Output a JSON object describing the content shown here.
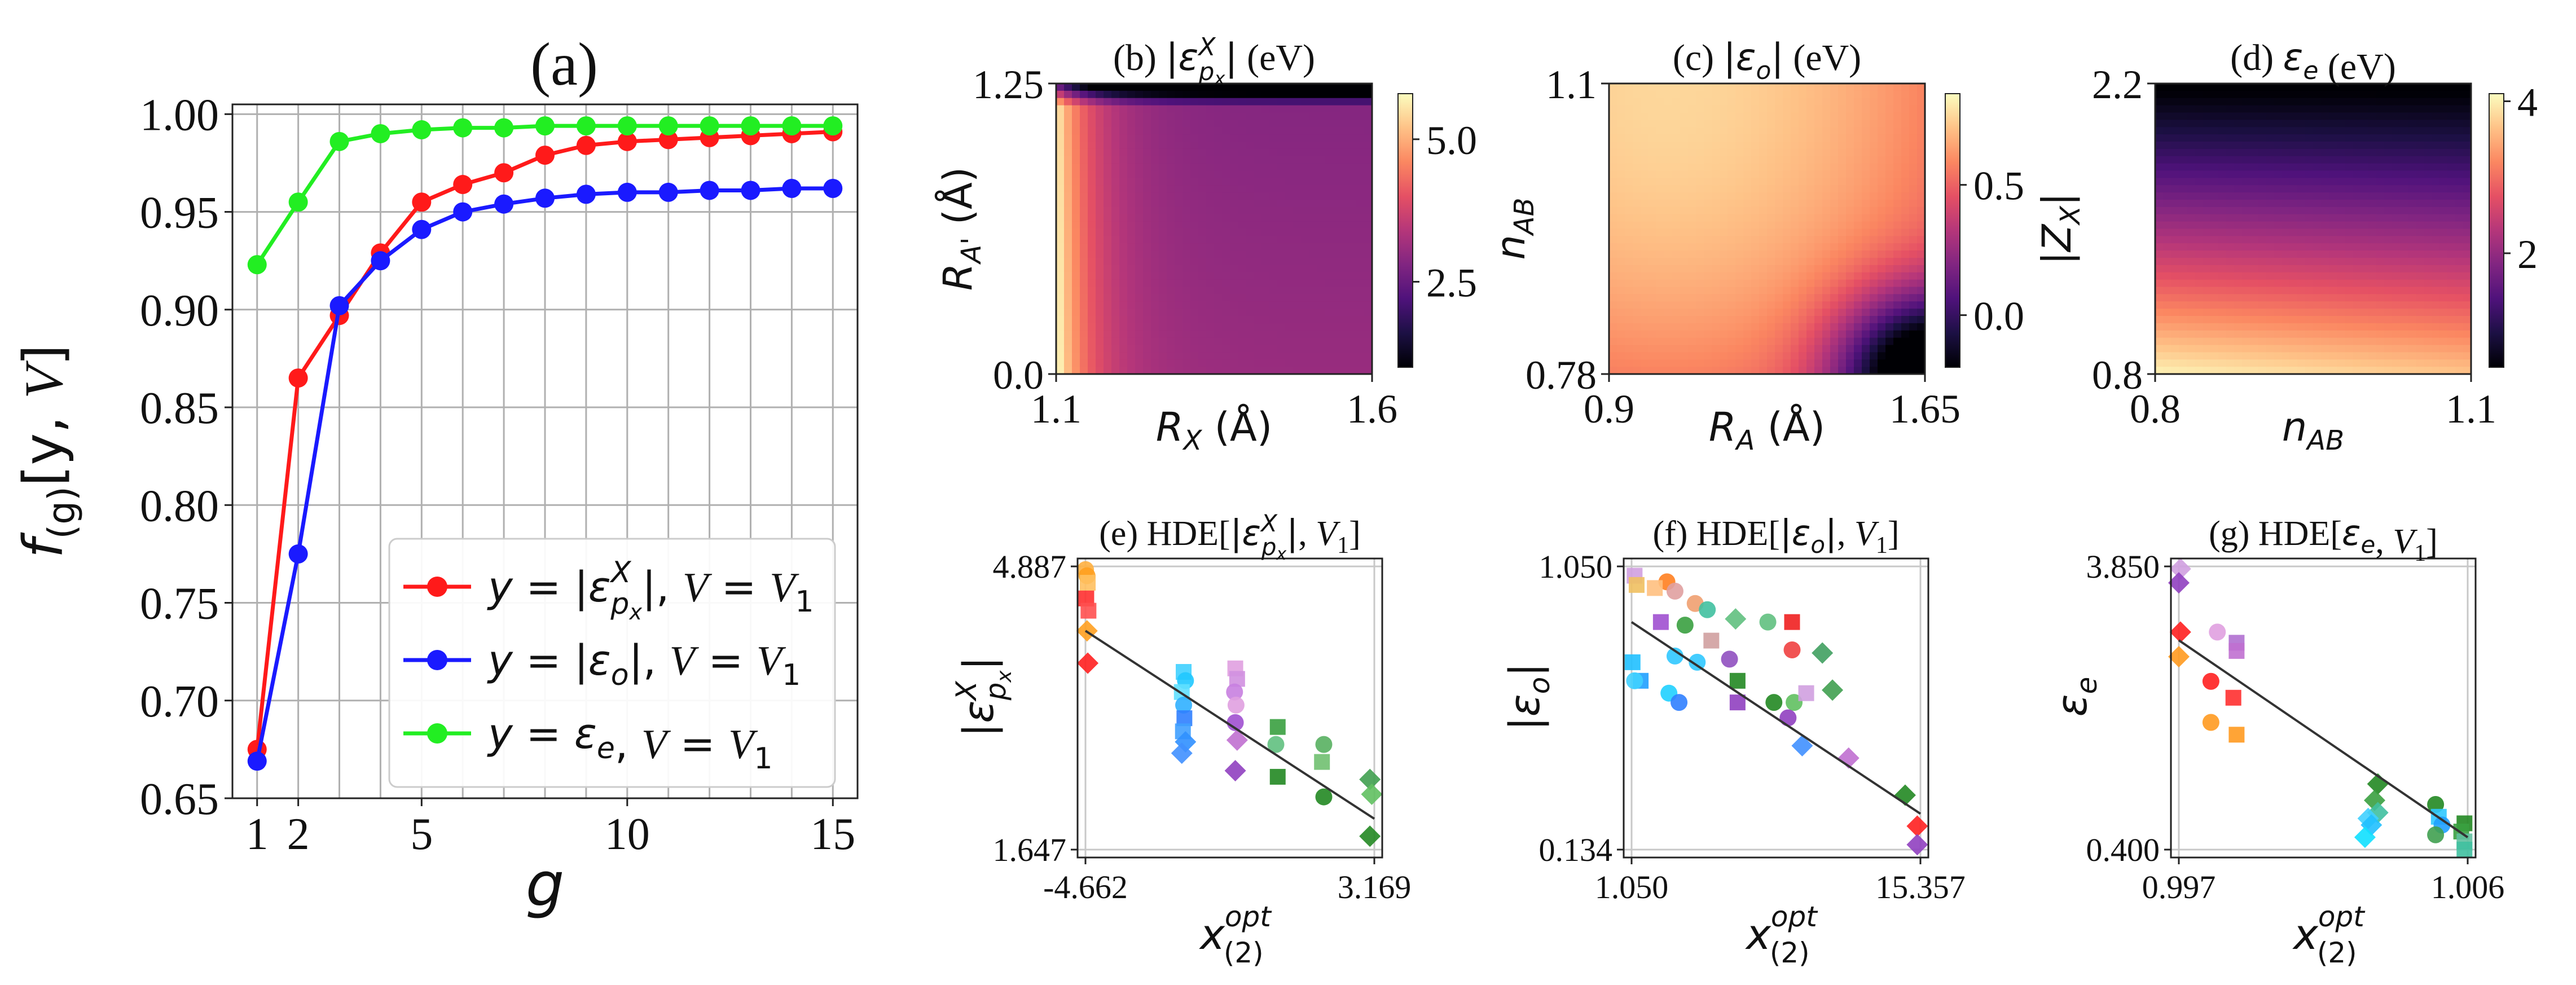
{
  "chart_data": [
    {
      "panel": "a",
      "type": "line",
      "title": "(a)",
      "xlabel": "g",
      "ylabel": "f_(g)[y, V]",
      "ylabel_main": "f",
      "ylabel_sub": "(g)",
      "ylabel_tail": "[y, ",
      "ylabel_V": "V",
      "ylabel_close": "]",
      "xlim": [
        0.4,
        15.6
      ],
      "ylim": [
        0.65,
        1.005
      ],
      "xticks": [
        1,
        2,
        5,
        10,
        15
      ],
      "yticks": [
        0.65,
        0.7,
        0.75,
        0.8,
        0.85,
        0.9,
        0.95,
        1.0
      ],
      "ytick_labels": [
        "0.65",
        "0.70",
        "0.75",
        "0.80",
        "0.85",
        "0.90",
        "0.95",
        "1.00"
      ],
      "grid": true,
      "legend_position": "lower-right",
      "x": [
        1,
        2,
        3,
        4,
        5,
        6,
        7,
        8,
        9,
        10,
        11,
        12,
        13,
        14,
        15
      ],
      "series": [
        {
          "name": "y = |ε^X_px|, V = V1",
          "legend_sym": "ε",
          "legend_sup": "X",
          "legend_sub": "p",
          "legend_subsub": "x",
          "legend_abs": true,
          "legend_V": "V",
          "legend_Vsub": "1",
          "color": "#ff1a1a",
          "values": [
            0.675,
            0.865,
            0.897,
            0.929,
            0.955,
            0.964,
            0.97,
            0.979,
            0.984,
            0.986,
            0.987,
            0.988,
            0.989,
            0.99,
            0.991
          ]
        },
        {
          "name": "y = |ε_o|, V = V1",
          "legend_sym": "ε",
          "legend_sup": "",
          "legend_sub": "o",
          "legend_subsub": "",
          "legend_abs": true,
          "legend_V": "V",
          "legend_Vsub": "1",
          "color": "#1a1aff",
          "values": [
            0.669,
            0.775,
            0.902,
            0.925,
            0.941,
            0.95,
            0.954,
            0.957,
            0.959,
            0.96,
            0.96,
            0.961,
            0.961,
            0.962,
            0.962
          ]
        },
        {
          "name": "y = ε_e, V = V1",
          "legend_sym": "ε",
          "legend_sup": "",
          "legend_sub": "e",
          "legend_subsub": "",
          "legend_abs": false,
          "legend_V": "V",
          "legend_Vsub": "1",
          "color": "#22ee22",
          "values": [
            0.923,
            0.955,
            0.986,
            0.99,
            0.992,
            0.993,
            0.993,
            0.994,
            0.994,
            0.994,
            0.994,
            0.994,
            0.994,
            0.994,
            0.994
          ]
        }
      ]
    },
    {
      "panel": "b",
      "type": "heatmap",
      "title_prefix": "(b)",
      "title_sym": "|ε",
      "title_sup": "X",
      "title_sub": "p",
      "title_subsub": "x",
      "title_close": "|",
      "title_unit": "(eV)",
      "xlabel": "R_X (Å)",
      "xlabel_sym": "R",
      "xlabel_sub": "X",
      "xlabel_unit": " (Å)",
      "ylabel": "R_A' (Å)",
      "ylabel_sym": "R",
      "ylabel_sub": "A'",
      "ylabel_unit": " (Å)",
      "xticks": [
        "1.1",
        "1.6"
      ],
      "yticks": [
        "0.0",
        "1.25"
      ],
      "colorbar_ticks": [
        {
          "value": 2.5,
          "label": "2.5"
        },
        {
          "value": 5.0,
          "label": "5.0"
        }
      ],
      "colorbar_range": [
        1.0,
        5.8
      ],
      "colormap": "magma"
    },
    {
      "panel": "c",
      "type": "heatmap",
      "title_prefix": "(c)",
      "title_sym": "|ε",
      "title_sup": "",
      "title_sub": "o",
      "title_subsub": "",
      "title_close": "|",
      "title_unit": "(eV)",
      "xlabel": "R_A (Å)",
      "xlabel_sym": "R",
      "xlabel_sub": "A",
      "xlabel_unit": " (Å)",
      "ylabel": "n_AB",
      "ylabel_sym": "n",
      "ylabel_sub": "AB",
      "ylabel_unit": "",
      "xticks": [
        "0.9",
        "1.65"
      ],
      "yticks": [
        "0.78",
        "1.1"
      ],
      "colorbar_ticks": [
        {
          "value": 0.0,
          "label": "0.0"
        },
        {
          "value": 0.5,
          "label": "0.5"
        }
      ],
      "colorbar_range": [
        -0.2,
        0.85
      ],
      "colormap": "magma"
    },
    {
      "panel": "d",
      "type": "heatmap",
      "title_prefix": "(d)",
      "title_sym": "ε",
      "title_sup": "",
      "title_sub": "e",
      "title_subsub": "",
      "title_close": "",
      "title_unit": "(eV)",
      "xlabel": "n_AB",
      "xlabel_sym": "n",
      "xlabel_sub": "AB",
      "xlabel_unit": "",
      "ylabel": "|Z_X|",
      "ylabel_sym": "|Z",
      "ylabel_sub": "X",
      "ylabel_unit": "|",
      "xticks": [
        "0.8",
        "1.1"
      ],
      "yticks": [
        "0.8",
        "2.2"
      ],
      "colorbar_ticks": [
        {
          "value": 2,
          "label": "2"
        },
        {
          "value": 4,
          "label": "4"
        }
      ],
      "colorbar_range": [
        0.5,
        4.1
      ],
      "colormap": "magma"
    },
    {
      "panel": "e",
      "type": "scatter",
      "title_prefix": "(e)",
      "title_pre": "HDE[",
      "title_sym": "|ε",
      "title_sup": "X",
      "title_sub": "p",
      "title_subsub": "x",
      "title_close": "|",
      "title_V": "V",
      "title_Vsub": "1",
      "xlabel": "x_(2)^opt",
      "ylabel": "|ε^X_px|",
      "ylabel_sym": "|ε",
      "ylabel_sup": "X",
      "ylabel_sub": "p",
      "ylabel_subsub": "x",
      "ylabel_close": "|",
      "xlim": [
        -4.662,
        3.169
      ],
      "ylim": [
        1.647,
        4.887
      ],
      "xtick_labels": [
        "-4.662",
        "3.169"
      ],
      "ytick_labels": [
        "4.887",
        "1.647"
      ],
      "fit_line": [
        [
          -4.662,
          4.15
        ],
        [
          3.169,
          2.0
        ]
      ],
      "points": [
        [
          -4.66,
          4.85,
          "#ffb040",
          "circle"
        ],
        [
          -4.62,
          4.78,
          "#ffa020",
          "circle"
        ],
        [
          -4.6,
          4.7,
          "#ffc060",
          "square"
        ],
        [
          -4.64,
          4.52,
          "#ff3030",
          "square"
        ],
        [
          -4.58,
          4.38,
          "#ff5050",
          "square"
        ],
        [
          -4.62,
          4.15,
          "#ffa020",
          "diamond"
        ],
        [
          -4.6,
          3.78,
          "#ff2020",
          "diamond"
        ],
        [
          -2.0,
          3.68,
          "#40d0ff",
          "square"
        ],
        [
          -1.95,
          3.58,
          "#20c8ff",
          "circle"
        ],
        [
          -2.05,
          3.45,
          "#60e0ff",
          "square"
        ],
        [
          -2.0,
          3.3,
          "#30b0ff",
          "circle"
        ],
        [
          -1.98,
          3.15,
          "#3080ff",
          "square"
        ],
        [
          -2.02,
          3.0,
          "#40a0ff",
          "square"
        ],
        [
          -1.95,
          2.88,
          "#3090ff",
          "diamond"
        ],
        [
          -2.05,
          2.75,
          "#4090ff",
          "diamond"
        ],
        [
          -0.6,
          3.72,
          "#e0a0e0",
          "square"
        ],
        [
          -0.55,
          3.6,
          "#d090e0",
          "square"
        ],
        [
          -0.62,
          3.45,
          "#c880e0",
          "circle"
        ],
        [
          -0.58,
          3.3,
          "#e0a0e0",
          "circle"
        ],
        [
          -0.6,
          3.1,
          "#a050d0",
          "circle"
        ],
        [
          -0.55,
          2.9,
          "#c070d0",
          "diamond"
        ],
        [
          -0.6,
          2.55,
          "#9040c0",
          "diamond"
        ],
        [
          0.55,
          3.05,
          "#3aa040",
          "square"
        ],
        [
          0.5,
          2.85,
          "#60c080",
          "circle"
        ],
        [
          0.55,
          2.48,
          "#228822",
          "square"
        ],
        [
          1.8,
          2.85,
          "#58b060",
          "circle"
        ],
        [
          1.75,
          2.65,
          "#70c070",
          "square"
        ],
        [
          1.8,
          2.25,
          "#228822",
          "circle"
        ],
        [
          3.05,
          2.45,
          "#40a050",
          "diamond"
        ],
        [
          3.1,
          2.28,
          "#60c060",
          "diamond"
        ],
        [
          3.05,
          1.8,
          "#228822",
          "diamond"
        ]
      ]
    },
    {
      "panel": "f",
      "type": "scatter",
      "title_prefix": "(f)",
      "title_pre": "HDE[",
      "title_sym": "|ε",
      "title_sup": "",
      "title_sub": "o",
      "title_subsub": "",
      "title_close": "|",
      "title_V": "V",
      "title_Vsub": "1",
      "xlabel": "x_(2)^opt",
      "ylabel": "|ε_o|",
      "ylabel_sym": "|ε",
      "ylabel_sup": "",
      "ylabel_sub": "o",
      "ylabel_subsub": "",
      "ylabel_close": "|",
      "xlim": [
        1.05,
        15.357
      ],
      "ylim": [
        0.134,
        1.05
      ],
      "xtick_labels": [
        "1.050",
        "15.357"
      ],
      "ytick_labels": [
        "1.050",
        "0.134"
      ],
      "fit_line": [
        [
          1.05,
          0.87
        ],
        [
          15.357,
          0.25
        ]
      ],
      "points": [
        [
          1.2,
          1.02,
          "#d0a0e0",
          "square"
        ],
        [
          1.3,
          0.99,
          "#f0c060",
          "square"
        ],
        [
          2.8,
          1.0,
          "#ff8020",
          "circle"
        ],
        [
          2.2,
          0.98,
          "#ffc080",
          "square"
        ],
        [
          3.2,
          0.97,
          "#e0a0a0",
          "circle"
        ],
        [
          4.2,
          0.93,
          "#f0a070",
          "circle"
        ],
        [
          4.8,
          0.91,
          "#40c0a0",
          "circle"
        ],
        [
          2.5,
          0.87,
          "#a050d0",
          "square"
        ],
        [
          3.7,
          0.86,
          "#3aa040",
          "circle"
        ],
        [
          6.2,
          0.88,
          "#60c080",
          "diamond"
        ],
        [
          7.8,
          0.87,
          "#60c080",
          "circle"
        ],
        [
          9.0,
          0.87,
          "#f02020",
          "square"
        ],
        [
          5.0,
          0.81,
          "#d0a0a0",
          "square"
        ],
        [
          9.0,
          0.78,
          "#f04040",
          "circle"
        ],
        [
          10.5,
          0.77,
          "#40a060",
          "diamond"
        ],
        [
          1.1,
          0.74,
          "#20c0ff",
          "square"
        ],
        [
          1.5,
          0.68,
          "#20a0ff",
          "square"
        ],
        [
          1.2,
          0.68,
          "#40d0ff",
          "circle"
        ],
        [
          3.2,
          0.76,
          "#30c8ff",
          "circle"
        ],
        [
          4.3,
          0.74,
          "#30c8ff",
          "circle"
        ],
        [
          2.9,
          0.64,
          "#20d0ff",
          "circle"
        ],
        [
          3.4,
          0.61,
          "#3080ff",
          "circle"
        ],
        [
          5.9,
          0.75,
          "#9050c0",
          "circle"
        ],
        [
          6.3,
          0.68,
          "#228822",
          "square"
        ],
        [
          6.3,
          0.61,
          "#9040c0",
          "square"
        ],
        [
          8.1,
          0.61,
          "#228822",
          "circle"
        ],
        [
          9.1,
          0.61,
          "#60c060",
          "circle"
        ],
        [
          9.7,
          0.64,
          "#d0a0e0",
          "square"
        ],
        [
          11.0,
          0.65,
          "#40a050",
          "diamond"
        ],
        [
          8.8,
          0.56,
          "#9040c0",
          "circle"
        ],
        [
          9.5,
          0.47,
          "#4090ff",
          "diamond"
        ],
        [
          11.8,
          0.43,
          "#c070d0",
          "diamond"
        ],
        [
          14.6,
          0.31,
          "#228822",
          "diamond"
        ],
        [
          15.2,
          0.21,
          "#ff2020",
          "diamond"
        ],
        [
          15.2,
          0.15,
          "#9040c0",
          "diamond"
        ]
      ]
    },
    {
      "panel": "g",
      "type": "scatter",
      "title_prefix": "(g)",
      "title_pre": "HDE[",
      "title_sym": "ε",
      "title_sup": "",
      "title_sub": "e",
      "title_subsub": "",
      "title_close": "",
      "title_V": "V",
      "title_Vsub": "1",
      "xlabel": "x_(2)^opt",
      "ylabel": "ε_e",
      "ylabel_sym": "ε",
      "ylabel_sup": "",
      "ylabel_sub": "e",
      "ylabel_subsub": "",
      "ylabel_close": "",
      "xlim": [
        0.997,
        1.006
      ],
      "ylim": [
        0.4,
        3.85
      ],
      "xtick_labels": [
        "0.997",
        "1.006"
      ],
      "ytick_labels": [
        "3.850",
        "0.400"
      ],
      "fit_line": [
        [
          0.997,
          2.95
        ],
        [
          1.006,
          0.55
        ]
      ],
      "points": [
        [
          0.99705,
          3.82,
          "#d0a0e0",
          "diamond"
        ],
        [
          0.997,
          3.65,
          "#9040c0",
          "diamond"
        ],
        [
          0.99705,
          3.05,
          "#ff2020",
          "diamond"
        ],
        [
          0.997,
          2.75,
          "#ff9a20",
          "diamond"
        ],
        [
          0.9982,
          3.05,
          "#e0a0e0",
          "circle"
        ],
        [
          0.9988,
          2.92,
          "#b070d0",
          "square"
        ],
        [
          0.9988,
          2.82,
          "#c070d0",
          "square"
        ],
        [
          0.998,
          2.45,
          "#ff2020",
          "circle"
        ],
        [
          0.9987,
          2.25,
          "#ff3030",
          "square"
        ],
        [
          0.998,
          1.95,
          "#ff9a20",
          "circle"
        ],
        [
          0.9988,
          1.8,
          "#ff9a20",
          "square"
        ],
        [
          1.0032,
          1.2,
          "#228822",
          "diamond"
        ],
        [
          1.0031,
          1.0,
          "#3aa040",
          "diamond"
        ],
        [
          1.0032,
          0.85,
          "#40c0a0",
          "diamond"
        ],
        [
          1.0029,
          0.78,
          "#40d0ff",
          "diamond"
        ],
        [
          1.003,
          0.7,
          "#20c0ff",
          "diamond"
        ],
        [
          1.0028,
          0.55,
          "#10e0ff",
          "diamond"
        ],
        [
          1.005,
          0.95,
          "#228822",
          "circle"
        ],
        [
          1.0051,
          0.8,
          "#30c8ff",
          "square"
        ],
        [
          1.0052,
          0.7,
          "#20a0ff",
          "circle"
        ],
        [
          1.0059,
          0.72,
          "#228822",
          "square"
        ],
        [
          1.0058,
          0.62,
          "#3aa040",
          "square"
        ],
        [
          1.005,
          0.58,
          "#40a050",
          "circle"
        ],
        [
          1.0059,
          0.5,
          "#60c0a0",
          "square"
        ],
        [
          1.0059,
          0.4,
          "#40c0a0",
          "square"
        ]
      ]
    }
  ]
}
